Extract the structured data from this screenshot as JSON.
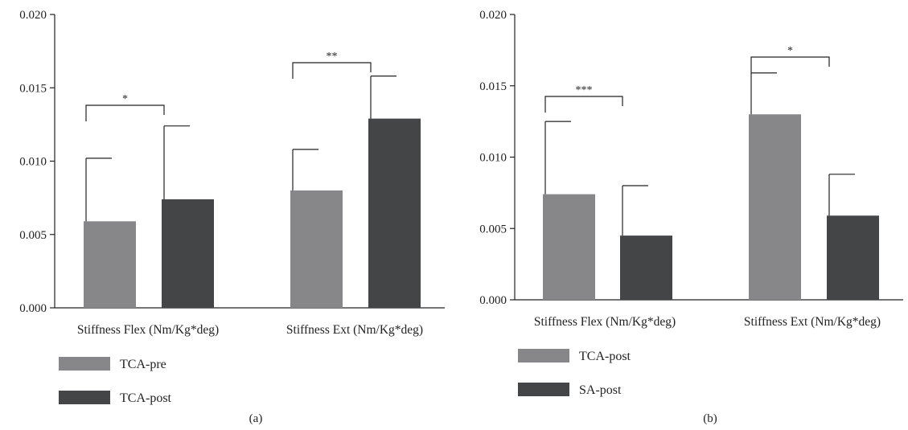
{
  "colors": {
    "pre": "#87878a",
    "post": "#444547",
    "axis": "#222222"
  },
  "chart_data": [
    {
      "panel": "(a)",
      "type": "bar",
      "title": "",
      "xlabel": "",
      "ylabel": "",
      "ylim": [
        0,
        0.02
      ],
      "yticks": [
        "0.000",
        "0.005",
        "0.010",
        "0.015",
        "0.020"
      ],
      "categories": [
        "Stiffness Flex (Nm/Kg*deg)",
        "Stiffness Ext (Nm/Kg*deg)"
      ],
      "series": [
        {
          "name": "TCA-pre",
          "color": "#87878a",
          "values": [
            0.0059,
            0.008
          ],
          "error": [
            0.0043,
            0.0028
          ]
        },
        {
          "name": "TCA-post",
          "color": "#444547",
          "values": [
            0.0074,
            0.0129
          ],
          "error": [
            0.005,
            0.0029
          ]
        }
      ],
      "significance": [
        "*",
        "**"
      ],
      "legend": [
        "TCA-pre",
        "TCA-post"
      ]
    },
    {
      "panel": "(b)",
      "type": "bar",
      "title": "",
      "xlabel": "",
      "ylabel": "",
      "ylim": [
        0,
        0.02
      ],
      "yticks": [
        "0.000",
        "0.005",
        "0.010",
        "0.015",
        "0.020"
      ],
      "categories": [
        "Stiffness Flex (Nm/Kg*deg)",
        "Stiffness Ext (Nm/Kg*deg)"
      ],
      "series": [
        {
          "name": "TCA-post",
          "color": "#87878a",
          "values": [
            0.0074,
            0.013
          ],
          "error": [
            0.0051,
            0.0029
          ]
        },
        {
          "name": "SA-post",
          "color": "#444547",
          "values": [
            0.0045,
            0.0059
          ],
          "error": [
            0.0035,
            0.0029
          ]
        }
      ],
      "significance": [
        "***",
        "*"
      ],
      "legend": [
        "TCA-post",
        "SA-post"
      ]
    }
  ]
}
